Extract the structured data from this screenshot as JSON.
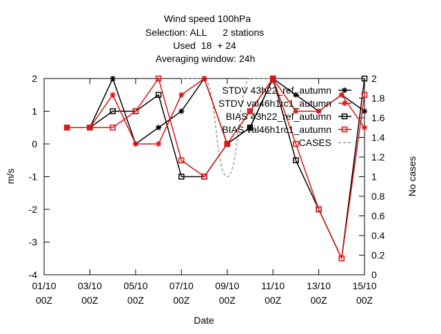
{
  "chart_data": {
    "type": "line",
    "title": [
      "Wind speed 100hPa",
      "Selection: ALL      2 stations",
      "Used  18  + 24",
      "Averaging window: 24h"
    ],
    "xlabel": "Date",
    "ylabel": "m/s",
    "y2label": "No cases",
    "x_tick_labels": [
      {
        "x": 0,
        "line1": "01/10",
        "line2": "00Z"
      },
      {
        "x": 2,
        "line1": "03/10",
        "line2": "00Z"
      },
      {
        "x": 4,
        "line1": "05/10",
        "line2": "00Z"
      },
      {
        "x": 6,
        "line1": "07/10",
        "line2": "00Z"
      },
      {
        "x": 8,
        "line1": "09/10",
        "line2": "00Z"
      },
      {
        "x": 10,
        "line1": "11/10",
        "line2": "00Z"
      },
      {
        "x": 12,
        "line1": "13/10",
        "line2": "00Z"
      },
      {
        "x": 14,
        "line1": "15/10",
        "line2": "00Z"
      }
    ],
    "xlim": [
      0,
      14
    ],
    "ylim": [
      -4,
      2
    ],
    "y_ticks": [
      -4,
      -3,
      -2,
      -1,
      0,
      1,
      2
    ],
    "y2lim": [
      0,
      2
    ],
    "y2_ticks": [
      0,
      0.2,
      0.4,
      0.6,
      0.8,
      1,
      1.2,
      1.4,
      1.6,
      1.8,
      2
    ],
    "grid": false,
    "legend_position": "top-right",
    "series": [
      {
        "name": "STDV 43h22_ref_autumn",
        "legend_label": "STDV 43h22_ref_autumn",
        "color": "#000000",
        "marker": "star",
        "dashed": false,
        "axis": "y",
        "x": [
          1,
          2,
          3,
          4,
          5,
          6,
          7,
          8,
          9,
          10,
          11,
          12,
          13,
          14
        ],
        "values": [
          0.5,
          0.5,
          2.0,
          0.0,
          0.5,
          1.0,
          2.0,
          0.0,
          0.5,
          2.0,
          1.5,
          1.0,
          1.5,
          1.0
        ]
      },
      {
        "name": "STDV val46h1rc1_autumn",
        "legend_label": "STDV val46h1rc1_autumn",
        "color": "#dd1111",
        "marker": "star",
        "dashed": false,
        "axis": "y",
        "x": [
          1,
          2,
          3,
          4,
          5,
          6,
          7,
          8,
          9,
          10,
          11,
          12,
          13,
          14
        ],
        "values": [
          0.5,
          0.5,
          1.5,
          0.0,
          0.0,
          1.5,
          2.0,
          0.0,
          1.0,
          2.0,
          1.0,
          1.0,
          1.5,
          0.5
        ]
      },
      {
        "name": "BIAS 43h22_ref_autumn",
        "legend_label": "BIAS 43h22_ref_autumn",
        "color": "#000000",
        "marker": "square",
        "dashed": false,
        "axis": "y",
        "x": [
          1,
          2,
          3,
          4,
          5,
          6,
          7,
          8,
          9,
          10,
          11,
          12,
          13,
          14
        ],
        "values": [
          0.5,
          0.5,
          1.0,
          1.0,
          1.5,
          -1.0,
          -1.0,
          0.0,
          0.5,
          2.0,
          -0.5,
          -2.0,
          -3.5,
          2.0
        ]
      },
      {
        "name": "BIAS val46h1rc1_autumn",
        "legend_label": "BIAS val46h1rc1_autumn",
        "color": "#dd1111",
        "marker": "square",
        "dashed": false,
        "axis": "y",
        "x": [
          1,
          2,
          3,
          4,
          5,
          6,
          7,
          8,
          9,
          10,
          11,
          12,
          13,
          14
        ],
        "values": [
          0.5,
          0.5,
          0.5,
          1.0,
          2.0,
          -0.5,
          -1.0,
          0.0,
          1.0,
          2.0,
          0.0,
          -2.0,
          -3.5,
          1.5
        ]
      },
      {
        "name": "CASES",
        "legend_label": "CASES",
        "color": "#999999",
        "marker": "none",
        "dashed": true,
        "axis": "y2",
        "x": [
          6,
          7,
          8,
          9,
          10
        ],
        "values": [
          2,
          2,
          1,
          2,
          2
        ]
      }
    ]
  }
}
